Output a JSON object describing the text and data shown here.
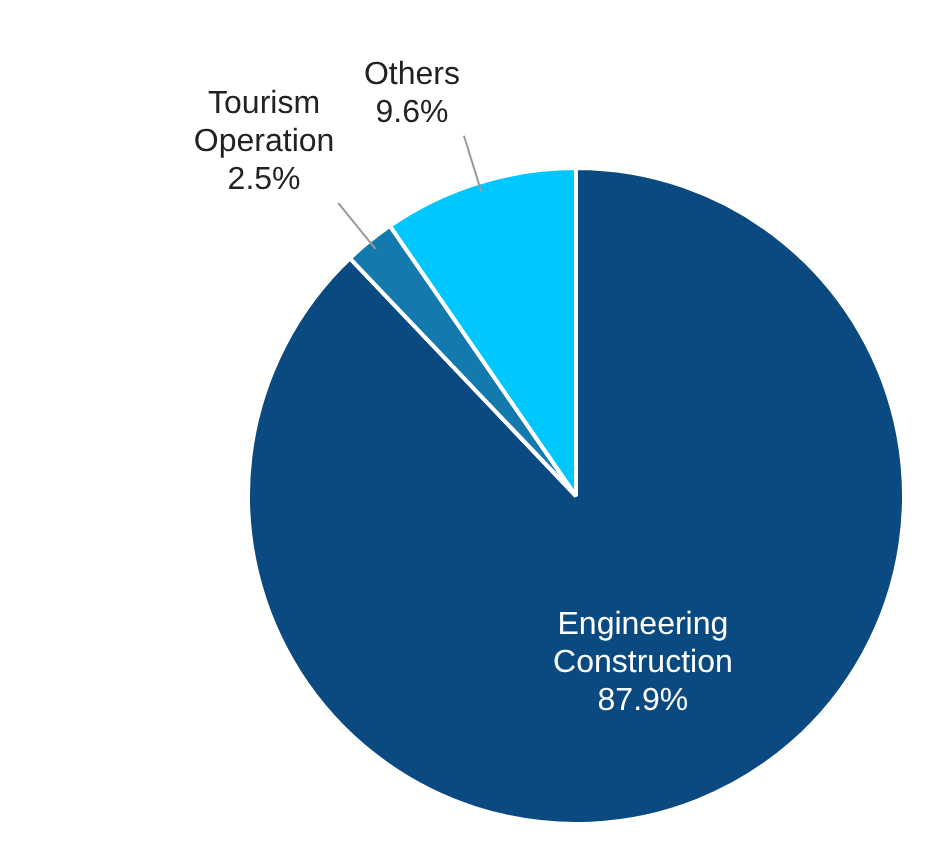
{
  "chart_data": {
    "type": "pie",
    "categories": [
      "Engineering Construction",
      "Tourism Operation",
      "Others"
    ],
    "values": [
      87.9,
      2.5,
      9.6
    ],
    "colors": [
      "#0b4a80",
      "#1479ac",
      "#00c8ff"
    ],
    "value_labels": [
      "87.9%",
      "2.5%",
      "9.6%"
    ],
    "legend": false
  }
}
